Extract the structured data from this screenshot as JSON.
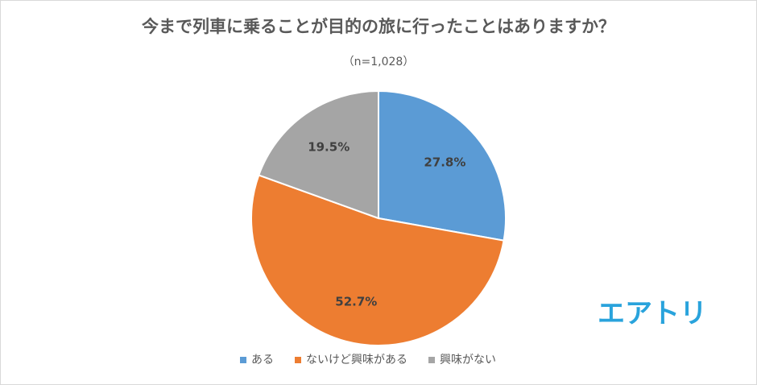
{
  "chart_data": {
    "type": "pie",
    "title": "今まで列車に乗ることが目的の旅に行ったことはありますか？",
    "subtitle": "（n=1,028）",
    "categories": [
      "ある",
      "ないけど興味がある",
      "興味がない"
    ],
    "values": [
      27.8,
      52.7,
      19.5
    ],
    "value_labels": [
      "27.8%",
      "52.7%",
      "19.5%"
    ],
    "colors": [
      "#5b9bd5",
      "#ed7d31",
      "#a5a5a5"
    ],
    "legend": "bottom",
    "annotation": "エアトリ"
  }
}
